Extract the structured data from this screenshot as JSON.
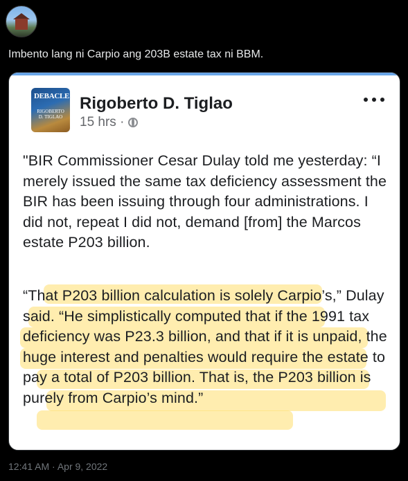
{
  "tweet": {
    "text": "Imbento lang ni Carpio ang 203B estate tax ni BBM.",
    "timestamp": "12:41 AM · Apr 9, 2022"
  },
  "post": {
    "avatar_title": "DEBACLE",
    "avatar_subtitle": "RIGOBERTO D. TIGLAO",
    "author": "Rigoberto D. Tiglao",
    "time": "15 hrs ·",
    "paragraph1": "\"BIR Commissioner Cesar Dulay told me yesterday: “I merely issued the same tax deficiency assessment the BIR has been issuing through four administrations. I did not, repeat I did not, demand [from] the Marcos estate P203 billion.",
    "paragraph2": "“That P203 billion calculation is solely Carpio’s,” Dulay said. “He simplistically computed that if the 1991 tax deficiency was P23.3 billion, and that if it is unpaid, the huge interest and penalties would require the estate to pay a total of P203 billion. That is, the P203 billion is purely from Carpio’s mind.”"
  },
  "colors": {
    "highlight": "#ffde6e",
    "card_bg": "#ffffff",
    "page_bg": "#000000"
  },
  "icons": [
    "globe-icon",
    "more-options-icon"
  ]
}
